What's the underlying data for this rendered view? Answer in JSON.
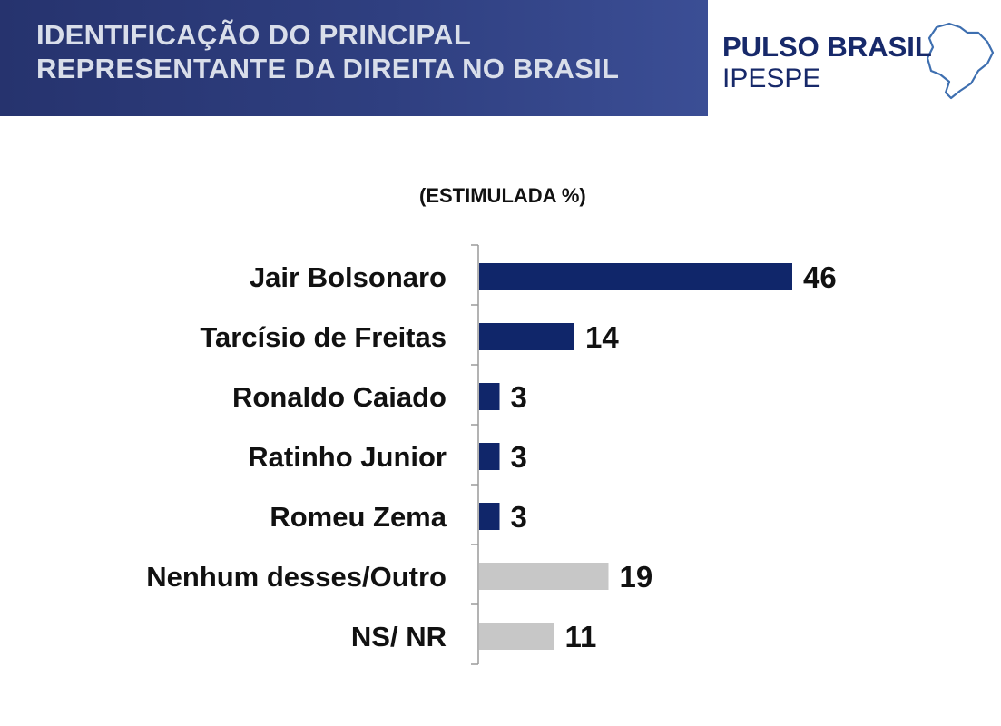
{
  "header": {
    "title_line1": "IDENTIFICAÇÃO DO PRINCIPAL",
    "title_line2": "REPRESENTANTE DA DIREITA NO BRASIL"
  },
  "logo": {
    "name": "PULSO BRASIL",
    "sub": "IPESPE",
    "map_icon": "brazil-map-outline-icon"
  },
  "chart_data": {
    "type": "bar",
    "orientation": "horizontal",
    "subtitle": "(ESTIMULADA %)",
    "categories": [
      "Jair Bolsonaro",
      "Tarcísio de Freitas",
      "Ronaldo Caiado",
      "Ratinho Junior",
      "Romeu Zema",
      "Nenhum desses/Outro",
      "NS/ NR"
    ],
    "values": [
      46,
      14,
      3,
      3,
      3,
      19,
      11
    ],
    "colors": [
      "#10266a",
      "#10266a",
      "#10266a",
      "#10266a",
      "#10266a",
      "#c7c7c7",
      "#c7c7c7"
    ],
    "xlim": [
      0,
      46
    ],
    "grid": false,
    "legend": "none"
  }
}
